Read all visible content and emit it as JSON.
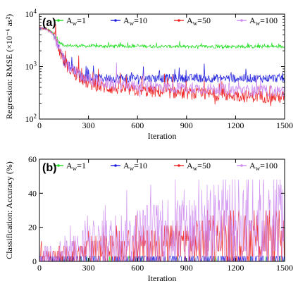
{
  "chart_data": [
    {
      "id": "a",
      "panel_label": "(a)",
      "type": "line",
      "ylabel": "Regression: RMSE (×10⁻⁶ as²)",
      "xlabel": "Iteration",
      "y_scale": "log",
      "xlim": [
        0,
        1500
      ],
      "ylim": [
        100,
        10000
      ],
      "x_ticks": [
        0,
        300,
        600,
        900,
        1200,
        1500
      ],
      "y_ticks": [
        {
          "value": 100,
          "base": "10",
          "exp": "2"
        },
        {
          "value": 1000,
          "base": "10",
          "exp": "3"
        },
        {
          "value": 10000,
          "base": "10",
          "exp": "4"
        }
      ],
      "legend": {
        "placement": "top",
        "entries": [
          {
            "prefix": "A",
            "sub": "w",
            "suffix": "=1"
          },
          {
            "prefix": "A",
            "sub": "w",
            "suffix": "=10"
          },
          {
            "prefix": "A",
            "sub": "w",
            "suffix": "=50"
          },
          {
            "prefix": "A",
            "sub": "w",
            "suffix": "=100"
          }
        ]
      },
      "series": [
        {
          "name": "Aw=1",
          "color": "#22dd22",
          "x": [
            0,
            40,
            80,
            100,
            120,
            140,
            160,
            200,
            300,
            600,
            900,
            1200,
            1500
          ],
          "values": [
            5500,
            5300,
            4500,
            3600,
            2900,
            2650,
            2550,
            2500,
            2450,
            2450,
            2400,
            2400,
            2400
          ],
          "noise": 0.03
        },
        {
          "name": "Aw=10",
          "color": "#1c1cdd",
          "x": [
            0,
            40,
            80,
            100,
            120,
            140,
            160,
            200,
            250,
            300,
            400,
            600,
            900,
            1200,
            1500
          ],
          "values": [
            5500,
            5200,
            4300,
            3200,
            2200,
            1600,
            1250,
            900,
            700,
            620,
            600,
            600,
            600,
            600,
            600
          ],
          "noise": 0.08
        },
        {
          "name": "Aw=50",
          "color": "#ee2222",
          "x": [
            0,
            40,
            80,
            100,
            120,
            140,
            160,
            200,
            250,
            300,
            400,
            600,
            900,
            1200,
            1500
          ],
          "values": [
            5500,
            5200,
            4300,
            3100,
            2100,
            1500,
            1100,
            800,
            600,
            470,
            400,
            350,
            310,
            280,
            260
          ],
          "noise": 0.12
        },
        {
          "name": "Aw=100",
          "color": "#cc88ee",
          "x": [
            0,
            40,
            80,
            100,
            120,
            140,
            160,
            200,
            250,
            300,
            400,
            600,
            900,
            1200,
            1500
          ],
          "values": [
            5500,
            5200,
            4300,
            3150,
            2150,
            1550,
            1150,
            850,
            680,
            560,
            480,
            430,
            390,
            360,
            340
          ],
          "noise": 0.11
        }
      ]
    },
    {
      "id": "b",
      "panel_label": "(b)",
      "type": "line",
      "ylabel": "Classification: Accuracy (%)",
      "xlabel": "Iteration",
      "y_scale": "linear",
      "xlim": [
        0,
        1500
      ],
      "ylim": [
        0,
        60
      ],
      "x_ticks": [
        0,
        300,
        600,
        900,
        1200,
        1500
      ],
      "y_ticks": [
        0,
        20,
        40,
        60
      ],
      "legend": {
        "placement": "top",
        "entries": [
          {
            "prefix": "A",
            "sub": "w",
            "suffix": "=1"
          },
          {
            "prefix": "A",
            "sub": "w",
            "suffix": "=10"
          },
          {
            "prefix": "A",
            "sub": "w",
            "suffix": "=50"
          },
          {
            "prefix": "A",
            "sub": "w",
            "suffix": "=100"
          }
        ]
      },
      "series": [
        {
          "name": "Aw=1",
          "color": "#22dd22",
          "x": [
            0,
            1500
          ],
          "values": [
            0,
            0
          ],
          "levels": [
            0,
            3
          ],
          "pattern": "sparse"
        },
        {
          "name": "Aw=10",
          "color": "#1c1cdd",
          "x": [
            0,
            1500
          ],
          "values": [
            1,
            1
          ],
          "levels": [
            0,
            3,
            6
          ],
          "pattern": "dense"
        },
        {
          "name": "Aw=50",
          "color": "#ee2222",
          "x": [
            0,
            150,
            300,
            600,
            900,
            1200,
            1500
          ],
          "values": [
            2,
            3,
            5,
            8,
            10,
            12,
            14
          ],
          "levels": [
            0,
            3,
            6,
            9,
            12,
            15,
            18,
            21,
            24,
            27,
            30
          ],
          "pattern": "spiky"
        },
        {
          "name": "Aw=100",
          "color": "#cc88ee",
          "x": [
            0,
            150,
            300,
            600,
            900,
            1200,
            1500
          ],
          "values": [
            3,
            5,
            9,
            14,
            19,
            22,
            26
          ],
          "levels": [
            0,
            3,
            6,
            9,
            12,
            15,
            18,
            21,
            24,
            27,
            30,
            33,
            36,
            39,
            42,
            45,
            48
          ],
          "pattern": "spiky"
        }
      ]
    }
  ]
}
